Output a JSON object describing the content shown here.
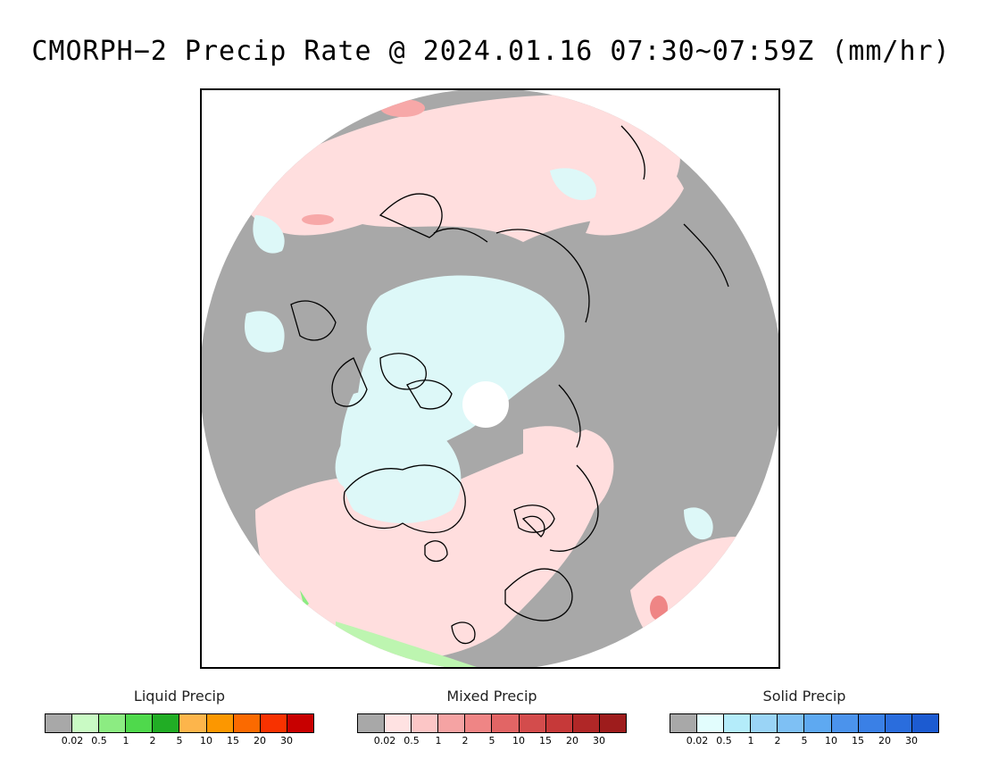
{
  "title": "CMORPH−2 Precip Rate @ 2024.01.16 07:30~07:59Z (mm/hr)",
  "map": {
    "projection": "north polar stereographic",
    "colors": {
      "no_precip": "#a8a8a8",
      "mixed_light": "#ffdede",
      "mixed_medium": "#f7a8a8",
      "solid_light": "#ddf8f8",
      "liquid_light": "#bdf5b0",
      "coast": "#000000"
    }
  },
  "legends": [
    {
      "title": "Liquid Precip",
      "colors": [
        "#a8a8a8",
        "#c9fac4",
        "#8cec82",
        "#4fd94c",
        "#21ad25",
        "#fdb54b",
        "#fc9700",
        "#fb6a00",
        "#f83200",
        "#c80000"
      ],
      "ticks": [
        "0.02",
        "0.5",
        "1",
        "2",
        "5",
        "10",
        "15",
        "20",
        "30"
      ]
    },
    {
      "title": "Mixed Precip",
      "colors": [
        "#a8a8a8",
        "#ffe2e2",
        "#fcc6c6",
        "#f5a3a3",
        "#ef8585",
        "#e26565",
        "#d34c4c",
        "#c63939",
        "#b02727",
        "#9e1c1c"
      ],
      "ticks": [
        "0.02",
        "0.5",
        "1",
        "2",
        "5",
        "10",
        "15",
        "20",
        "30"
      ]
    },
    {
      "title": "Solid Precip",
      "colors": [
        "#a8a8a8",
        "#e2fdfd",
        "#b4ecfa",
        "#9ad4f6",
        "#7ec0f4",
        "#5ea9f1",
        "#4b93ec",
        "#3a80e6",
        "#2a6ddd",
        "#1c5bd1"
      ],
      "ticks": [
        "0.02",
        "0.5",
        "1",
        "2",
        "5",
        "10",
        "15",
        "20",
        "30"
      ]
    }
  ]
}
